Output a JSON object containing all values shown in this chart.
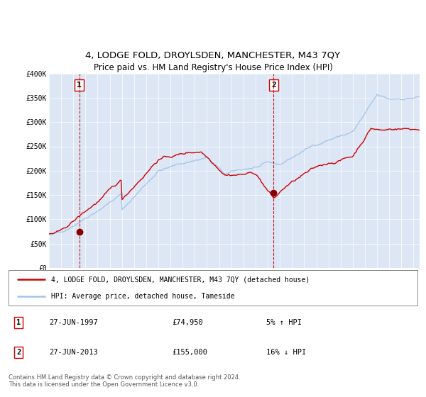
{
  "title": "4, LODGE FOLD, DROYLSDEN, MANCHESTER, M43 7QY",
  "subtitle": "Price paid vs. HM Land Registry's House Price Index (HPI)",
  "title_fontsize": 9.5,
  "subtitle_fontsize": 8.5,
  "background_color": "#dce6f5",
  "plot_bg_color": "#dce6f5",
  "hpi_color": "#a0c4e8",
  "price_color": "#cc0000",
  "marker_color": "#880000",
  "dashed_line_color": "#cc0000",
  "ylim": [
    0,
    400000
  ],
  "yticks": [
    0,
    50000,
    100000,
    150000,
    200000,
    250000,
    300000,
    350000,
    400000
  ],
  "ytick_labels": [
    "£0",
    "£50K",
    "£100K",
    "£150K",
    "£200K",
    "£250K",
    "£300K",
    "£350K",
    "£400K"
  ],
  "sale1_price": 74950,
  "sale1_label": "27-JUN-1997",
  "sale1_amount": "£74,950",
  "sale1_hpi": "5% ↑ HPI",
  "sale2_price": 155000,
  "sale2_label": "27-JUN-2013",
  "sale2_amount": "£155,000",
  "sale2_hpi": "16% ↓ HPI",
  "legend_line1": "4, LODGE FOLD, DROYLSDEN, MANCHESTER, M43 7QY (detached house)",
  "legend_line2": "HPI: Average price, detached house, Tameside",
  "footer": "Contains HM Land Registry data © Crown copyright and database right 2024.\nThis data is licensed under the Open Government Licence v3.0.",
  "xstart": 1995.0,
  "xend": 2025.5
}
